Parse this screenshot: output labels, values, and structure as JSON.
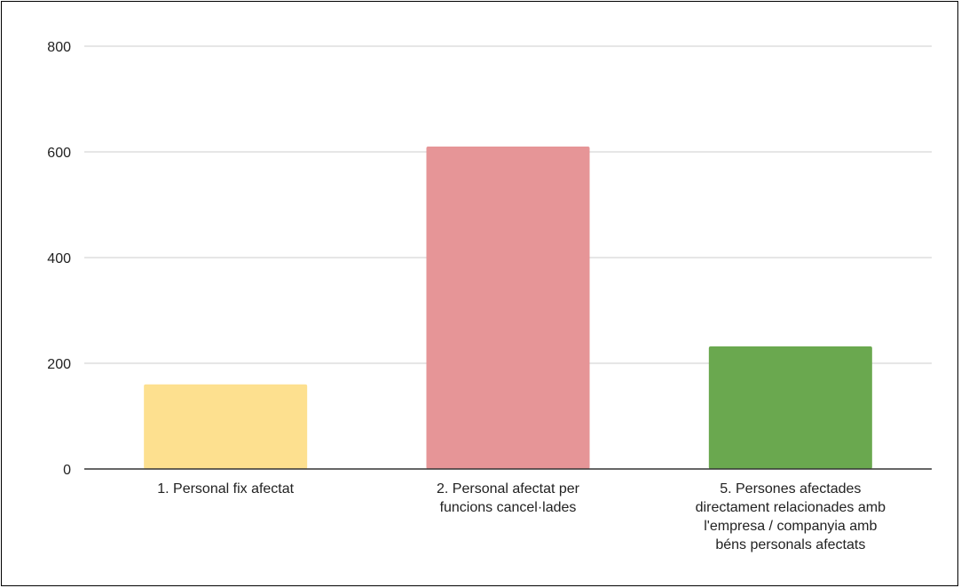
{
  "chart_data": {
    "type": "bar",
    "title": "",
    "xlabel": "",
    "ylabel": "",
    "ylim": [
      0,
      800
    ],
    "yticks": [
      0,
      200,
      400,
      600,
      800
    ],
    "grid": true,
    "legend": "none",
    "categories": [
      [
        "1. Personal fix afectat"
      ],
      [
        "2. Personal afectat per",
        "funcions cancel·lades"
      ],
      [
        "5. Persones afectades",
        "directament relacionades amb",
        "l'empresa / companyia amb",
        "béns personals afectats"
      ]
    ],
    "values": [
      160,
      610,
      232
    ],
    "colors": [
      "#fde08f",
      "#e69597",
      "#6aa84f"
    ],
    "grid_color": "#cccccc",
    "axis_color": "#333333"
  }
}
